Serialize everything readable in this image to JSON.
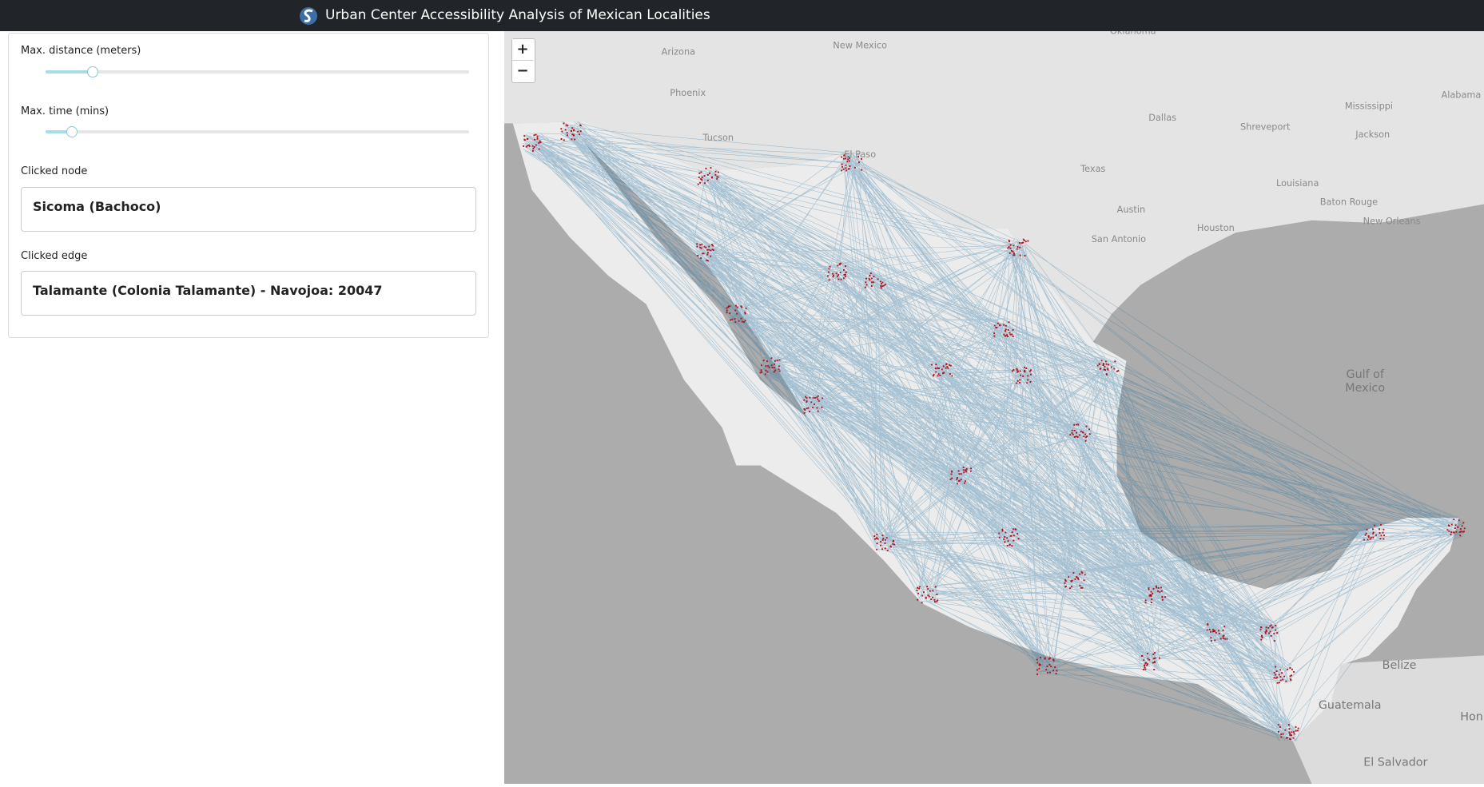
{
  "header": {
    "title": "Urban Center Accessibility Analysis of Mexican Localities"
  },
  "controls": {
    "max_distance": {
      "label": "Max. distance (meters)"
    },
    "max_time": {
      "label": "Max. time (mins)"
    },
    "clicked_node": {
      "label": "Clicked node",
      "value": "Sicoma (Bachoco)"
    },
    "clicked_edge": {
      "label": "Clicked edge",
      "value": "Talamante (Colonia Talamante) - Navojoa: 20047"
    }
  },
  "map": {
    "zoom_in": "+",
    "zoom_out": "−",
    "labels": [
      "Oklahoma",
      "Arizona",
      "New Mexico",
      "Phoenix",
      "Tucson",
      "El Paso",
      "Dallas",
      "Shreveport",
      "Mississippi",
      "Jackson",
      "Alabama",
      "Texas",
      "Louisiana",
      "Austin",
      "San Antonio",
      "Houston",
      "Baton Rouge",
      "New Orleans",
      "Gulf of",
      "Mexico",
      "Belize",
      "Guatemala",
      "El Salvador",
      "Hon"
    ]
  }
}
